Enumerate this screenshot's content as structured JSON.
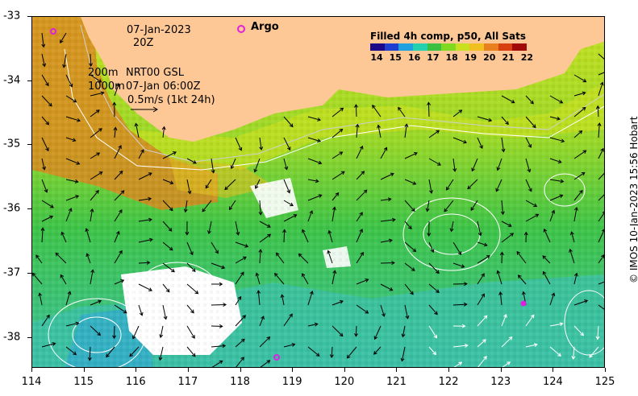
{
  "header": {
    "date": "07-Jan-2023",
    "hour": "20Z",
    "argo_label": "Argo",
    "depth_200": "200m",
    "depth_1000": "1000m",
    "source": "NRT00 GSL",
    "time": "07-Jan 06:00Z",
    "scale": "0.5m/s (1kt 24h)"
  },
  "legend": {
    "title": "Filled 4h comp, p50, All Sats",
    "ticks": [
      "14",
      "15",
      "16",
      "17",
      "18",
      "19",
      "20",
      "21",
      "22"
    ],
    "colors": [
      "#1a0a8a",
      "#1f3fd0",
      "#1fa0e0",
      "#25d0b0",
      "#3ac040",
      "#80d820",
      "#c8e020",
      "#f0c020",
      "#e88020",
      "#d84010",
      "#a00a0a"
    ]
  },
  "axes": {
    "x_ticks": [
      "114",
      "115",
      "116",
      "117",
      "118",
      "119",
      "120",
      "121",
      "122",
      "123",
      "124",
      "125"
    ],
    "y_ticks": [
      "-33",
      "-34",
      "-35",
      "-36",
      "-37",
      "-38"
    ]
  },
  "credit": "© IMOS 10-Jan-2023 15:56 Hobart",
  "colors": {
    "land": "#fdc896",
    "warm": "#d88a20",
    "mid": "#9ad828",
    "cool": "#3ec448",
    "cold": "#3cb8b8",
    "argo": "#e020e0"
  }
}
